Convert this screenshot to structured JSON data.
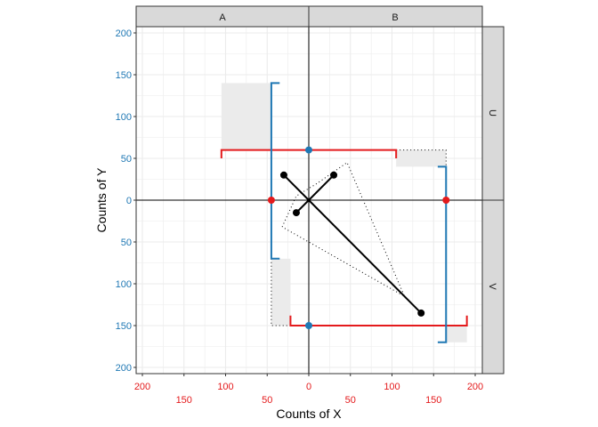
{
  "chart_data": {
    "type": "scatter",
    "xlabel": "Counts of X",
    "ylabel": "Counts of Y",
    "xlim": [
      -210,
      210
    ],
    "ylim": [
      -205,
      205
    ],
    "grid": true,
    "facets": {
      "columns": [
        "A",
        "B"
      ],
      "rows": [
        "U",
        "V"
      ]
    },
    "x_ticks": [
      {
        "value": -200,
        "label": "200",
        "row": 1
      },
      {
        "value": -150,
        "label": "150",
        "row": 2
      },
      {
        "value": -100,
        "label": "100",
        "row": 1
      },
      {
        "value": -50,
        "label": "50",
        "row": 2
      },
      {
        "value": 0,
        "label": "0",
        "row": 1
      },
      {
        "value": 50,
        "label": "50",
        "row": 2
      },
      {
        "value": 100,
        "label": "100",
        "row": 1
      },
      {
        "value": 150,
        "label": "150",
        "row": 2
      },
      {
        "value": 200,
        "label": "200",
        "row": 1
      }
    ],
    "y_ticks": [
      {
        "value": 200,
        "label": "200"
      },
      {
        "value": 150,
        "label": "150"
      },
      {
        "value": 100,
        "label": "100"
      },
      {
        "value": 50,
        "label": "50"
      },
      {
        "value": 0,
        "label": "0"
      },
      {
        "value": -50,
        "label": "50"
      },
      {
        "value": -100,
        "label": "100"
      },
      {
        "value": -150,
        "label": "150"
      },
      {
        "value": -200,
        "label": "200"
      }
    ],
    "colors": {
      "x_axis": "#E41A1C",
      "y_axis": "#1F78B4",
      "points": "#000000",
      "shade": "#EBEBEB"
    },
    "black_points": [
      [
        -30,
        30
      ],
      [
        30,
        30
      ],
      [
        -15,
        -15
      ],
      [
        135,
        -135
      ]
    ],
    "red_points": [
      [
        -45,
        0
      ],
      [
        165,
        0
      ]
    ],
    "blue_points": [
      [
        0,
        60
      ],
      [
        0,
        -150
      ]
    ],
    "red_brackets": [
      {
        "y": 60,
        "x_from": -105,
        "x_to": 105,
        "tick_to": 50
      },
      {
        "y": -150,
        "x_from": -22,
        "x_to": 190,
        "tick_to": -138
      }
    ],
    "blue_brackets": [
      {
        "x": -45,
        "y_from": 140,
        "y_to": -70,
        "tick_to": -35
      },
      {
        "x": 165,
        "y_from": 40,
        "y_to": -170,
        "tick_to": 155
      }
    ],
    "shaded_rects": [
      [
        -105,
        -45,
        60,
        140
      ],
      [
        105,
        165,
        40,
        60
      ],
      [
        -45,
        -22,
        -150,
        -70
      ],
      [
        165,
        190,
        -170,
        -150
      ]
    ],
    "dotted_paths": [
      [
        [
          105,
          60
        ],
        [
          165,
          60
        ],
        [
          165,
          40
        ]
      ],
      [
        [
          -45,
          -70
        ],
        [
          -45,
          -150
        ],
        [
          -22,
          -150
        ]
      ],
      [
        [
          -32,
          -32
        ],
        [
          -15,
          5
        ],
        [
          10,
          20
        ],
        [
          46,
          45
        ],
        [
          115,
          -115
        ],
        [
          -32,
          -32
        ]
      ]
    ]
  }
}
